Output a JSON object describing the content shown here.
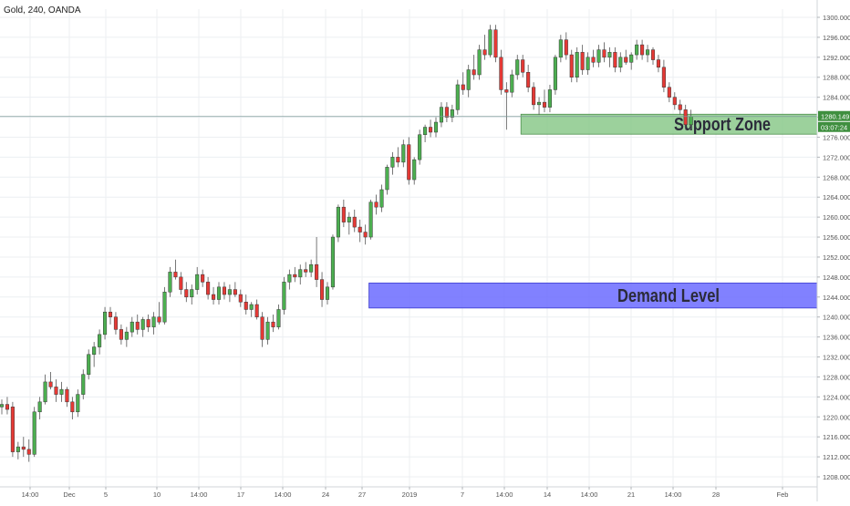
{
  "header": {
    "symbol_title": "Gold, 240, OANDA"
  },
  "colors": {
    "up_candle": "#4caf50",
    "down_candle": "#e53935",
    "support_zone": "#8bc98b",
    "demand_zone": "#6b6bff",
    "price_line": "#7d9a9a",
    "price_tag": "#3f8f3f",
    "grid": "#eceff2",
    "axis_text": "#555555"
  },
  "price_tag": {
    "price": "1280.149",
    "countdown": "03:07:24"
  },
  "chart_data": {
    "type": "candlestick",
    "symbol": "Gold",
    "interval": "240",
    "broker": "OANDA",
    "ylim": [
      1206,
      1302
    ],
    "yticks": [
      "1300.000",
      "1296.000",
      "1292.000",
      "1288.000",
      "1284.000",
      "1280.000",
      "1276.000",
      "1272.000",
      "1268.000",
      "1264.000",
      "1260.000",
      "1256.000",
      "1252.000",
      "1248.000",
      "1244.000",
      "1240.000",
      "1236.000",
      "1232.000",
      "1228.000",
      "1224.000",
      "1220.000",
      "1216.000",
      "1212.000",
      "1208.000"
    ],
    "xtick_labels": [
      "14:00",
      "Dec",
      "5",
      "10",
      "14:00",
      "17",
      "14:00",
      "24",
      "27",
      "2019",
      "7",
      "14:00",
      "14",
      "14:00",
      "21",
      "14:00",
      "28",
      "Feb"
    ],
    "current_price": 1280.149,
    "grid": true,
    "zones": [
      {
        "label": "Support Zone",
        "low": 1276.6,
        "high": 1280.6,
        "start_index": 96
      },
      {
        "label": "Demand Level",
        "low": 1241.8,
        "high": 1246.8,
        "start_index": 68
      }
    ],
    "candles": [
      {
        "o": 1222.0,
        "h": 1223.5,
        "l": 1220.5,
        "c": 1222.5
      },
      {
        "o": 1222.5,
        "h": 1224.0,
        "l": 1220.5,
        "c": 1221.5
      },
      {
        "o": 1222.0,
        "h": 1223.0,
        "l": 1212.0,
        "c": 1213.0
      },
      {
        "o": 1213.0,
        "h": 1215.0,
        "l": 1211.5,
        "c": 1214.0
      },
      {
        "o": 1214.0,
        "h": 1216.0,
        "l": 1212.0,
        "c": 1213.5
      },
      {
        "o": 1213.5,
        "h": 1215.5,
        "l": 1211.0,
        "c": 1212.5
      },
      {
        "o": 1212.5,
        "h": 1222.0,
        "l": 1212.0,
        "c": 1221.0
      },
      {
        "o": 1221.0,
        "h": 1224.0,
        "l": 1219.5,
        "c": 1223.0
      },
      {
        "o": 1223.0,
        "h": 1228.5,
        "l": 1222.5,
        "c": 1227.0
      },
      {
        "o": 1227.0,
        "h": 1229.0,
        "l": 1225.5,
        "c": 1226.0
      },
      {
        "o": 1226.0,
        "h": 1227.5,
        "l": 1223.0,
        "c": 1224.5
      },
      {
        "o": 1224.5,
        "h": 1227.0,
        "l": 1223.0,
        "c": 1225.5
      },
      {
        "o": 1225.5,
        "h": 1226.0,
        "l": 1222.0,
        "c": 1223.0
      },
      {
        "o": 1223.0,
        "h": 1224.0,
        "l": 1219.5,
        "c": 1221.0
      },
      {
        "o": 1221.0,
        "h": 1225.5,
        "l": 1220.0,
        "c": 1224.5
      },
      {
        "o": 1224.5,
        "h": 1229.5,
        "l": 1223.5,
        "c": 1228.5
      },
      {
        "o": 1228.5,
        "h": 1233.5,
        "l": 1227.5,
        "c": 1232.5
      },
      {
        "o": 1232.5,
        "h": 1235.0,
        "l": 1230.0,
        "c": 1234.0
      },
      {
        "o": 1234.0,
        "h": 1237.5,
        "l": 1232.5,
        "c": 1236.5
      },
      {
        "o": 1236.5,
        "h": 1242.0,
        "l": 1235.5,
        "c": 1241.0
      },
      {
        "o": 1241.0,
        "h": 1242.0,
        "l": 1238.5,
        "c": 1240.0
      },
      {
        "o": 1240.0,
        "h": 1241.0,
        "l": 1236.5,
        "c": 1237.5
      },
      {
        "o": 1237.5,
        "h": 1238.5,
        "l": 1234.5,
        "c": 1235.5
      },
      {
        "o": 1235.5,
        "h": 1238.0,
        "l": 1234.0,
        "c": 1237.0
      },
      {
        "o": 1237.0,
        "h": 1240.0,
        "l": 1236.0,
        "c": 1239.0
      },
      {
        "o": 1239.0,
        "h": 1240.5,
        "l": 1236.5,
        "c": 1237.5
      },
      {
        "o": 1237.5,
        "h": 1240.0,
        "l": 1236.0,
        "c": 1239.5
      },
      {
        "o": 1239.5,
        "h": 1240.5,
        "l": 1237.0,
        "c": 1238.0
      },
      {
        "o": 1238.0,
        "h": 1241.0,
        "l": 1236.5,
        "c": 1240.0
      },
      {
        "o": 1240.0,
        "h": 1243.0,
        "l": 1238.5,
        "c": 1239.0
      },
      {
        "o": 1239.0,
        "h": 1246.0,
        "l": 1238.5,
        "c": 1245.0
      },
      {
        "o": 1245.0,
        "h": 1250.0,
        "l": 1244.0,
        "c": 1249.0
      },
      {
        "o": 1249.0,
        "h": 1251.5,
        "l": 1247.5,
        "c": 1248.0
      },
      {
        "o": 1248.0,
        "h": 1249.0,
        "l": 1244.5,
        "c": 1245.5
      },
      {
        "o": 1245.5,
        "h": 1247.0,
        "l": 1243.0,
        "c": 1244.0
      },
      {
        "o": 1244.0,
        "h": 1246.5,
        "l": 1242.5,
        "c": 1245.5
      },
      {
        "o": 1245.5,
        "h": 1250.0,
        "l": 1244.5,
        "c": 1248.5
      },
      {
        "o": 1248.5,
        "h": 1249.5,
        "l": 1246.0,
        "c": 1247.0
      },
      {
        "o": 1247.0,
        "h": 1248.0,
        "l": 1243.5,
        "c": 1244.5
      },
      {
        "o": 1244.5,
        "h": 1246.0,
        "l": 1242.5,
        "c": 1243.5
      },
      {
        "o": 1243.5,
        "h": 1247.0,
        "l": 1242.5,
        "c": 1246.0
      },
      {
        "o": 1246.0,
        "h": 1247.0,
        "l": 1243.5,
        "c": 1244.5
      },
      {
        "o": 1244.5,
        "h": 1246.5,
        "l": 1243.0,
        "c": 1245.5
      },
      {
        "o": 1245.5,
        "h": 1247.0,
        "l": 1244.0,
        "c": 1244.5
      },
      {
        "o": 1244.5,
        "h": 1245.5,
        "l": 1242.0,
        "c": 1243.0
      },
      {
        "o": 1243.0,
        "h": 1244.5,
        "l": 1240.5,
        "c": 1241.5
      },
      {
        "o": 1241.5,
        "h": 1243.0,
        "l": 1240.0,
        "c": 1242.5
      },
      {
        "o": 1242.5,
        "h": 1243.5,
        "l": 1239.5,
        "c": 1240.0
      },
      {
        "o": 1240.0,
        "h": 1241.0,
        "l": 1234.0,
        "c": 1235.5
      },
      {
        "o": 1235.5,
        "h": 1240.0,
        "l": 1234.5,
        "c": 1239.0
      },
      {
        "o": 1239.0,
        "h": 1240.5,
        "l": 1237.0,
        "c": 1238.0
      },
      {
        "o": 1238.0,
        "h": 1242.5,
        "l": 1237.5,
        "c": 1241.5
      },
      {
        "o": 1241.5,
        "h": 1248.0,
        "l": 1240.5,
        "c": 1247.0
      },
      {
        "o": 1247.0,
        "h": 1249.5,
        "l": 1245.5,
        "c": 1248.5
      },
      {
        "o": 1248.5,
        "h": 1250.0,
        "l": 1247.0,
        "c": 1248.0
      },
      {
        "o": 1248.0,
        "h": 1250.5,
        "l": 1246.5,
        "c": 1249.5
      },
      {
        "o": 1249.5,
        "h": 1251.0,
        "l": 1248.0,
        "c": 1249.0
      },
      {
        "o": 1249.0,
        "h": 1251.5,
        "l": 1248.0,
        "c": 1250.5
      },
      {
        "o": 1250.5,
        "h": 1256.0,
        "l": 1246.0,
        "c": 1247.5
      },
      {
        "o": 1247.5,
        "h": 1249.0,
        "l": 1242.0,
        "c": 1243.5
      },
      {
        "o": 1243.5,
        "h": 1247.0,
        "l": 1242.5,
        "c": 1246.0
      },
      {
        "o": 1246.0,
        "h": 1256.5,
        "l": 1245.5,
        "c": 1256.0
      },
      {
        "o": 1256.0,
        "h": 1262.5,
        "l": 1255.0,
        "c": 1262.0
      },
      {
        "o": 1262.0,
        "h": 1263.5,
        "l": 1258.0,
        "c": 1259.0
      },
      {
        "o": 1259.0,
        "h": 1261.0,
        "l": 1256.5,
        "c": 1260.0
      },
      {
        "o": 1260.0,
        "h": 1261.5,
        "l": 1257.0,
        "c": 1258.0
      },
      {
        "o": 1258.0,
        "h": 1259.5,
        "l": 1255.0,
        "c": 1257.0
      },
      {
        "o": 1257.0,
        "h": 1258.5,
        "l": 1254.5,
        "c": 1256.0
      },
      {
        "o": 1256.0,
        "h": 1263.5,
        "l": 1255.5,
        "c": 1263.0
      },
      {
        "o": 1263.0,
        "h": 1264.5,
        "l": 1260.5,
        "c": 1262.0
      },
      {
        "o": 1262.0,
        "h": 1266.5,
        "l": 1261.0,
        "c": 1265.5
      },
      {
        "o": 1265.5,
        "h": 1270.5,
        "l": 1264.5,
        "c": 1270.0
      },
      {
        "o": 1270.0,
        "h": 1273.0,
        "l": 1268.5,
        "c": 1272.0
      },
      {
        "o": 1272.0,
        "h": 1274.0,
        "l": 1270.0,
        "c": 1271.0
      },
      {
        "o": 1271.0,
        "h": 1275.5,
        "l": 1270.0,
        "c": 1274.5
      },
      {
        "o": 1274.5,
        "h": 1276.0,
        "l": 1266.5,
        "c": 1267.5
      },
      {
        "o": 1267.5,
        "h": 1272.0,
        "l": 1266.5,
        "c": 1271.5
      },
      {
        "o": 1271.5,
        "h": 1277.5,
        "l": 1270.5,
        "c": 1276.5
      },
      {
        "o": 1276.5,
        "h": 1278.5,
        "l": 1275.0,
        "c": 1278.0
      },
      {
        "o": 1278.0,
        "h": 1279.5,
        "l": 1276.0,
        "c": 1277.0
      },
      {
        "o": 1277.0,
        "h": 1280.0,
        "l": 1276.0,
        "c": 1279.0
      },
      {
        "o": 1279.0,
        "h": 1283.0,
        "l": 1278.0,
        "c": 1282.0
      },
      {
        "o": 1282.0,
        "h": 1283.0,
        "l": 1279.0,
        "c": 1280.0
      },
      {
        "o": 1280.0,
        "h": 1282.5,
        "l": 1279.0,
        "c": 1281.5
      },
      {
        "o": 1281.5,
        "h": 1287.5,
        "l": 1280.5,
        "c": 1286.5
      },
      {
        "o": 1286.5,
        "h": 1289.0,
        "l": 1284.5,
        "c": 1285.5
      },
      {
        "o": 1285.5,
        "h": 1290.5,
        "l": 1284.0,
        "c": 1289.5
      },
      {
        "o": 1289.5,
        "h": 1292.5,
        "l": 1287.5,
        "c": 1288.5
      },
      {
        "o": 1288.5,
        "h": 1294.5,
        "l": 1287.5,
        "c": 1293.5
      },
      {
        "o": 1293.5,
        "h": 1296.5,
        "l": 1291.5,
        "c": 1292.5
      },
      {
        "o": 1292.5,
        "h": 1298.5,
        "l": 1292.0,
        "c": 1297.5
      },
      {
        "o": 1297.5,
        "h": 1298.5,
        "l": 1291.0,
        "c": 1292.0
      },
      {
        "o": 1292.0,
        "h": 1293.5,
        "l": 1284.5,
        "c": 1285.5
      },
      {
        "o": 1285.5,
        "h": 1287.0,
        "l": 1277.5,
        "c": 1285.0
      },
      {
        "o": 1285.0,
        "h": 1289.5,
        "l": 1284.0,
        "c": 1288.5
      },
      {
        "o": 1288.5,
        "h": 1292.5,
        "l": 1287.5,
        "c": 1291.5
      },
      {
        "o": 1291.5,
        "h": 1292.5,
        "l": 1288.0,
        "c": 1289.0
      },
      {
        "o": 1289.0,
        "h": 1290.5,
        "l": 1285.0,
        "c": 1286.0
      },
      {
        "o": 1286.0,
        "h": 1287.0,
        "l": 1281.5,
        "c": 1282.5
      },
      {
        "o": 1282.5,
        "h": 1284.0,
        "l": 1280.5,
        "c": 1283.0
      },
      {
        "o": 1283.0,
        "h": 1285.5,
        "l": 1281.0,
        "c": 1282.0
      },
      {
        "o": 1282.0,
        "h": 1286.5,
        "l": 1281.0,
        "c": 1285.5
      },
      {
        "o": 1285.5,
        "h": 1292.5,
        "l": 1284.5,
        "c": 1292.0
      },
      {
        "o": 1292.0,
        "h": 1296.5,
        "l": 1291.0,
        "c": 1295.5
      },
      {
        "o": 1295.5,
        "h": 1297.0,
        "l": 1291.5,
        "c": 1292.5
      },
      {
        "o": 1292.5,
        "h": 1293.5,
        "l": 1287.0,
        "c": 1288.0
      },
      {
        "o": 1288.0,
        "h": 1294.0,
        "l": 1287.0,
        "c": 1293.0
      },
      {
        "o": 1293.0,
        "h": 1294.5,
        "l": 1288.5,
        "c": 1289.5
      },
      {
        "o": 1289.5,
        "h": 1293.0,
        "l": 1288.5,
        "c": 1292.0
      },
      {
        "o": 1292.0,
        "h": 1293.5,
        "l": 1290.0,
        "c": 1291.0
      },
      {
        "o": 1291.0,
        "h": 1294.5,
        "l": 1290.0,
        "c": 1293.5
      },
      {
        "o": 1293.5,
        "h": 1295.0,
        "l": 1291.0,
        "c": 1292.0
      },
      {
        "o": 1292.0,
        "h": 1294.0,
        "l": 1290.0,
        "c": 1293.0
      },
      {
        "o": 1293.0,
        "h": 1294.0,
        "l": 1289.0,
        "c": 1290.0
      },
      {
        "o": 1290.0,
        "h": 1293.0,
        "l": 1289.0,
        "c": 1292.0
      },
      {
        "o": 1292.0,
        "h": 1293.5,
        "l": 1290.5,
        "c": 1291.0
      },
      {
        "o": 1291.0,
        "h": 1293.0,
        "l": 1289.5,
        "c": 1292.5
      },
      {
        "o": 1292.5,
        "h": 1295.5,
        "l": 1291.5,
        "c": 1294.5
      },
      {
        "o": 1294.5,
        "h": 1295.5,
        "l": 1291.5,
        "c": 1292.5
      },
      {
        "o": 1292.5,
        "h": 1294.5,
        "l": 1291.0,
        "c": 1293.5
      },
      {
        "o": 1293.5,
        "h": 1294.0,
        "l": 1290.5,
        "c": 1291.5
      },
      {
        "o": 1291.5,
        "h": 1292.5,
        "l": 1289.0,
        "c": 1290.0
      },
      {
        "o": 1290.0,
        "h": 1291.5,
        "l": 1285.0,
        "c": 1286.0
      },
      {
        "o": 1286.0,
        "h": 1287.0,
        "l": 1283.0,
        "c": 1284.0
      },
      {
        "o": 1284.0,
        "h": 1285.0,
        "l": 1281.5,
        "c": 1282.5
      },
      {
        "o": 1282.5,
        "h": 1283.5,
        "l": 1280.5,
        "c": 1281.5
      },
      {
        "o": 1281.5,
        "h": 1282.5,
        "l": 1277.5,
        "c": 1278.5
      },
      {
        "o": 1278.5,
        "h": 1281.5,
        "l": 1277.5,
        "c": 1280.149
      }
    ]
  }
}
